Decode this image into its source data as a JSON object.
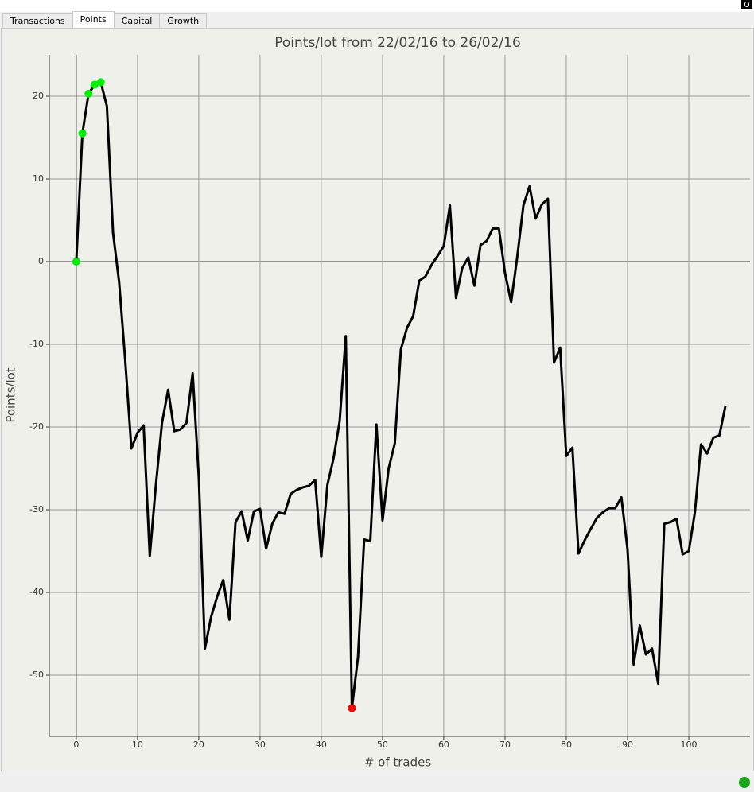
{
  "tabs": [
    "Transactions",
    "Points",
    "Capital",
    "Growth"
  ],
  "active_tab": 1,
  "chart_data": {
    "type": "line",
    "title": "Points/lot from 22/02/16 to 26/02/16",
    "x_label": "# of trades",
    "y_label": "Points/lot",
    "color": "#000000",
    "grid": true,
    "x": [
      0,
      1,
      2,
      3,
      4,
      5,
      6,
      7,
      8,
      9,
      10,
      11,
      12,
      13,
      14,
      15,
      16,
      17,
      18,
      19,
      20,
      21,
      22,
      23,
      24,
      25,
      26,
      27,
      28,
      29,
      30,
      31,
      32,
      33,
      34,
      35,
      36,
      37,
      38,
      39,
      40,
      41,
      42,
      43,
      44,
      45,
      46,
      47,
      48,
      49,
      50,
      51,
      52,
      53,
      54,
      55,
      56,
      57,
      58,
      59,
      60,
      61,
      62,
      63,
      64,
      65,
      66,
      67,
      68,
      69,
      70,
      71,
      72,
      73,
      74,
      75,
      76,
      77,
      78,
      79,
      80,
      81,
      82,
      83,
      84,
      85,
      86,
      87,
      88,
      89,
      90,
      91,
      92,
      93,
      94,
      95,
      96,
      97,
      98,
      99,
      100,
      101,
      102,
      103,
      104,
      105,
      106
    ],
    "values": [
      0,
      15.5,
      20.3,
      21.4,
      21.7,
      18.8,
      3.5,
      -2.5,
      -12,
      -22.6,
      -20.7,
      -19.8,
      -35.6,
      -27,
      -19.5,
      -15.5,
      -20.5,
      -20.3,
      -19.5,
      -13.5,
      -26,
      -46.8,
      -43,
      -40.5,
      -38.5,
      -43.3,
      -31.5,
      -30.2,
      -33.7,
      -30.2,
      -29.9,
      -34.7,
      -31.7,
      -30.3,
      -30.5,
      -28.1,
      -27.6,
      -27.3,
      -27.1,
      -26.4,
      -35.7,
      -27,
      -23.8,
      -19.3,
      -9,
      -54,
      -47.8,
      -33.6,
      -33.8,
      -19.7,
      -31.3,
      -25,
      -22,
      -10.6,
      -8,
      -6.6,
      -2.3,
      -1.8,
      -0.4,
      0.7,
      1.9,
      6.8,
      -4.4,
      -0.8,
      0.5,
      -2.9,
      2,
      2.5,
      4,
      4,
      -1.4,
      -4.9,
      0.6,
      6.8,
      9.1,
      5.2,
      6.9,
      7.6,
      -12.2,
      -10.4,
      -23.5,
      -22.5,
      -35.3,
      -33.7,
      -32.3,
      -31,
      -30.3,
      -29.8,
      -29.8,
      -28.5,
      -34.8,
      -48.7,
      -44,
      -47.5,
      -46.8,
      -51,
      -31.7,
      -31.5,
      -31.1,
      -35.4,
      -35,
      -30.3,
      -22.1,
      -23.2,
      -21.3,
      -21,
      -17.4
    ],
    "markers": [
      {
        "color": "#00ee00",
        "x": [
          0,
          1,
          2,
          3,
          4
        ],
        "values": [
          0,
          15.5,
          20.3,
          21.4,
          21.7
        ]
      },
      {
        "color": "#ff0000",
        "x": [
          45
        ],
        "values": [
          -54
        ]
      }
    ],
    "xlim": [
      -4.4,
      110
    ],
    "ylim": [
      -57.4,
      25
    ],
    "xticks": [
      0,
      10,
      20,
      30,
      40,
      50,
      60,
      70,
      80,
      90,
      100
    ],
    "yticks": [
      -50,
      -40,
      -30,
      -20,
      -10,
      0,
      10,
      20
    ]
  }
}
